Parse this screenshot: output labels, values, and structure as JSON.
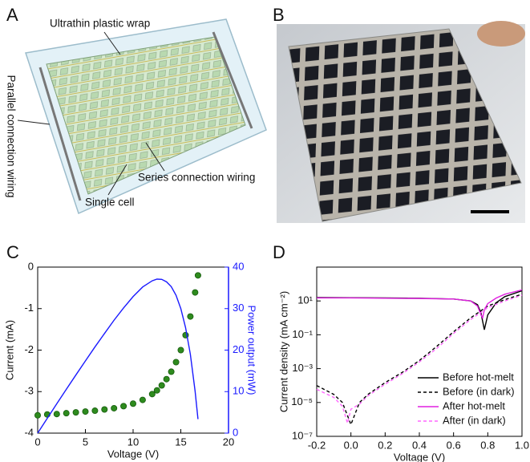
{
  "panels": {
    "labels": [
      "A",
      "B",
      "C",
      "D"
    ]
  },
  "illustration": {
    "annotations": [
      "Ultrathin plastic wrap",
      "Parallel connection wiring",
      "Series connection wiring",
      "Single cell"
    ]
  },
  "chart_data": [
    {
      "type": "line",
      "x": [
        0,
        1,
        2,
        3,
        4,
        5,
        6,
        7,
        8,
        9,
        10,
        11,
        12,
        12.5,
        13,
        13.5,
        14,
        14.5,
        15,
        15.5,
        16,
        16.5,
        16.8
      ],
      "xlim": [
        0,
        20
      ],
      "xticks": [
        0,
        5,
        10,
        15,
        20
      ],
      "ylim": [
        -4,
        0
      ],
      "yticks": [
        -4,
        -3,
        -2,
        -1,
        0
      ],
      "y2lim": [
        0,
        40
      ],
      "y2ticks": [
        0,
        10,
        20,
        30,
        40
      ],
      "xlabel": "Voltage (V)",
      "ylabel": "Current (mA)",
      "y2label": "Power output (mW)",
      "series": [
        {
          "color": "#2e8b1e",
          "marker": "circle",
          "values": [
            -3.57,
            -3.55,
            -3.54,
            -3.52,
            -3.5,
            -3.48,
            -3.46,
            -3.43,
            -3.4,
            -3.35,
            -3.29,
            -3.2,
            -3.06,
            -2.97,
            -2.85,
            -2.7,
            -2.52,
            -2.29,
            -2.0,
            -1.64,
            -1.19,
            -0.61,
            -0.2
          ]
        },
        {
          "color": "#1a1aff",
          "axis": "y2",
          "values": [
            0,
            3.55,
            7.07,
            10.56,
            14.0,
            17.4,
            20.76,
            24.0,
            27.2,
            30.15,
            32.9,
            35.2,
            36.7,
            37.1,
            37.05,
            36.45,
            35.28,
            33.2,
            30.0,
            25.4,
            19.0,
            10.07,
            3.36
          ]
        }
      ]
    },
    {
      "type": "line",
      "yscale": "log",
      "xlim": [
        -0.2,
        1.0
      ],
      "xticks": [
        -0.2,
        {
          "value": 0,
          "label": "0.0"
        },
        0.2,
        0.4,
        0.6,
        0.8,
        {
          "value": 1,
          "label": "1.0"
        }
      ],
      "ylim": [
        1e-07,
        1000
      ],
      "yticks": [
        {
          "value": 1e-07,
          "label": "10⁻⁷"
        },
        {
          "value": 1e-05,
          "label": "10⁻⁵"
        },
        {
          "value": 0.001,
          "label": "10⁻³"
        },
        {
          "value": 0.1,
          "label": "10⁻¹"
        },
        {
          "value": 10,
          "label": "10¹"
        }
      ],
      "xlabel": "Voltage (V)",
      "ylabel": "Current density (mA cm⁻²)",
      "legend": "lower right",
      "series": [
        {
          "name": "Before hot-melt",
          "color": "#000000",
          "dash": false,
          "x": [
            -0.2,
            0,
            0.2,
            0.4,
            0.6,
            0.7,
            0.74,
            0.76,
            0.78,
            0.8,
            0.85,
            0.9,
            1.0
          ],
          "values": [
            16,
            15.5,
            15,
            14.5,
            13,
            10,
            6,
            2,
            0.2,
            1.5,
            8,
            18,
            40
          ]
        },
        {
          "name": "Before (in dark)",
          "color": "#000000",
          "dash": true,
          "x": [
            -0.2,
            -0.1,
            -0.05,
            0,
            0.05,
            0.1,
            0.2,
            0.3,
            0.4,
            0.5,
            0.6,
            0.7,
            0.8,
            0.9,
            1.0
          ],
          "values": [
            0.0001,
            3e-05,
            1e-05,
            5e-07,
            1e-05,
            3e-05,
            0.00015,
            0.0006,
            0.003,
            0.02,
            0.15,
            1,
            5,
            12,
            25
          ]
        },
        {
          "name": "After hot-melt",
          "color": "#e020e0",
          "dash": false,
          "x": [
            -0.2,
            0,
            0.2,
            0.4,
            0.6,
            0.7,
            0.74,
            0.76,
            0.77,
            0.78,
            0.8,
            0.85,
            0.9,
            1.0
          ],
          "values": [
            15,
            15,
            14.5,
            14,
            13,
            10,
            5,
            1.5,
            1.0,
            3,
            7,
            15,
            25,
            45
          ]
        },
        {
          "name": "After (in dark)",
          "color": "#ff66ff",
          "dash": true,
          "x": [
            -0.2,
            -0.1,
            -0.05,
            -0.02,
            0,
            0.05,
            0.1,
            0.2,
            0.3,
            0.4,
            0.5,
            0.6,
            0.7,
            0.8,
            0.9,
            1.0
          ],
          "values": [
            6e-05,
            2e-05,
            6e-06,
            6e-07,
            4e-06,
            8e-06,
            2.5e-05,
            0.00012,
            0.0005,
            0.0025,
            0.015,
            0.12,
            0.8,
            4,
            10,
            22
          ]
        }
      ]
    }
  ]
}
